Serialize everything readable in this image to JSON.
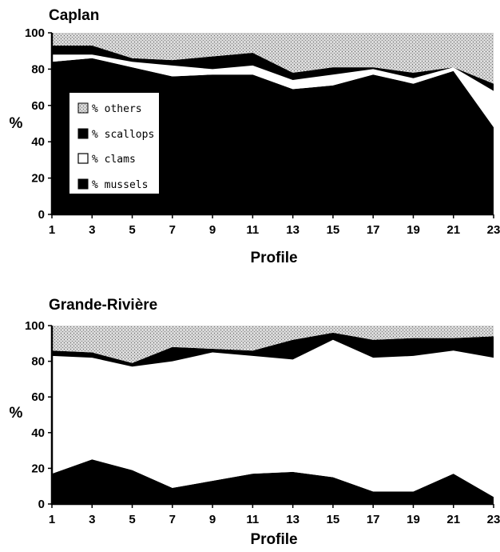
{
  "chart_data": [
    {
      "type": "area",
      "stacked": true,
      "title": "Caplan",
      "xlabel": "Profile",
      "ylabel": "%",
      "ylim": [
        0,
        100
      ],
      "yticks": [
        0,
        20,
        40,
        60,
        80,
        100
      ],
      "xticks": [
        1,
        3,
        5,
        7,
        9,
        11,
        13,
        15,
        17,
        19,
        21,
        23
      ],
      "x": [
        1,
        3,
        5,
        7,
        9,
        11,
        13,
        15,
        17,
        19,
        21,
        23
      ],
      "legend_position": "left-middle",
      "series": [
        {
          "name": "% mussels",
          "color": "#000000",
          "pattern": "solid-black",
          "values": [
            84,
            86,
            81,
            76,
            77,
            77,
            69,
            71,
            77,
            72,
            79,
            48
          ]
        },
        {
          "name": "% clams",
          "color": "#ffffff",
          "pattern": "white",
          "values": [
            4,
            2,
            3,
            6,
            3,
            5,
            5,
            6,
            3,
            3,
            2,
            20
          ]
        },
        {
          "name": "% scallops",
          "color": "#000000",
          "pattern": "solid-black",
          "values": [
            5,
            5,
            2,
            3,
            7,
            7,
            4,
            4,
            1,
            3,
            0,
            4
          ]
        },
        {
          "name": "% others",
          "color": "#bdbdbd",
          "pattern": "stipple-gray",
          "values": [
            7,
            7,
            14,
            15,
            13,
            11,
            22,
            19,
            19,
            22,
            19,
            28
          ]
        }
      ]
    },
    {
      "type": "area",
      "stacked": true,
      "title": "Grande-Rivière",
      "xlabel": "Profile",
      "ylabel": "%",
      "ylim": [
        0,
        100
      ],
      "yticks": [
        0,
        20,
        40,
        60,
        80,
        100
      ],
      "xticks": [
        1,
        3,
        5,
        7,
        9,
        11,
        13,
        15,
        17,
        19,
        21,
        23
      ],
      "x": [
        1,
        3,
        5,
        7,
        9,
        11,
        13,
        15,
        17,
        19,
        21,
        23
      ],
      "series": [
        {
          "name": "% mussels",
          "color": "#000000",
          "pattern": "solid-black",
          "values": [
            17,
            25,
            19,
            9,
            13,
            17,
            18,
            15,
            7,
            7,
            17,
            4
          ]
        },
        {
          "name": "% clams",
          "color": "#ffffff",
          "pattern": "white",
          "values": [
            66,
            57,
            58,
            71,
            72,
            66,
            63,
            77,
            75,
            76,
            69,
            78
          ]
        },
        {
          "name": "% scallops",
          "color": "#000000",
          "pattern": "solid-black",
          "values": [
            3,
            3,
            2,
            8,
            2,
            3,
            11,
            4,
            10,
            10,
            7,
            12
          ]
        },
        {
          "name": "% others",
          "color": "#bdbdbd",
          "pattern": "stipple-gray",
          "values": [
            14,
            15,
            21,
            12,
            13,
            14,
            8,
            4,
            8,
            7,
            7,
            6
          ]
        }
      ]
    }
  ]
}
